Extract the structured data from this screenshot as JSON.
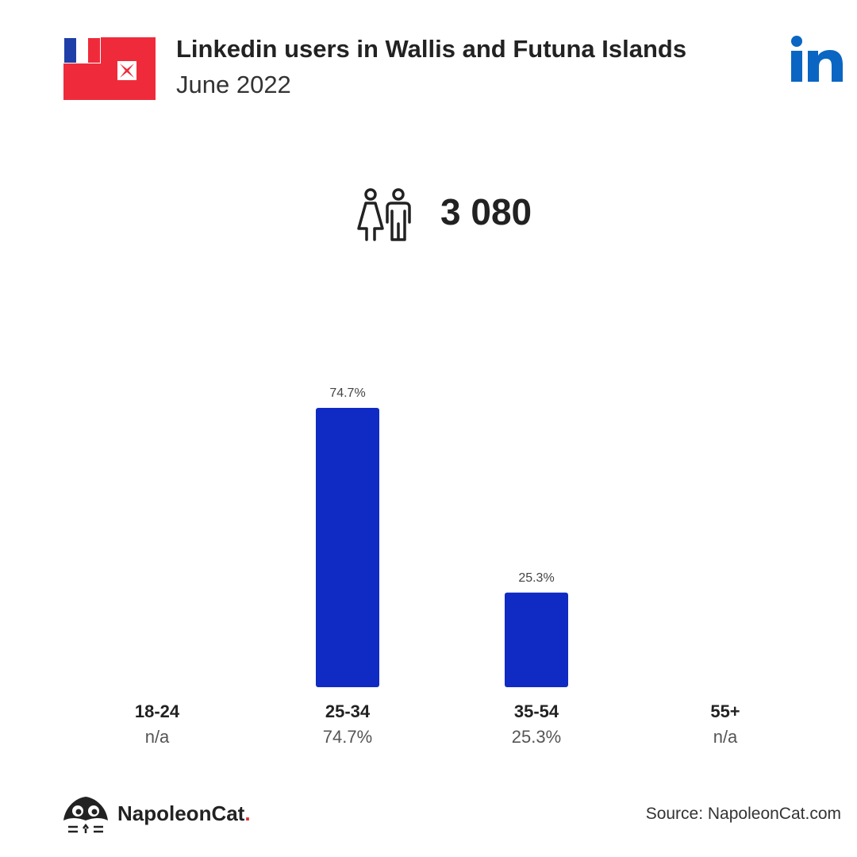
{
  "header": {
    "title": "Linkedin users in Wallis and Futuna Islands",
    "subtitle": "June 2022",
    "flag_icon": "wallis-futuna-flag-icon",
    "platform_icon": "linkedin-logo-icon"
  },
  "summary": {
    "icon": "people-icon",
    "total_users": "3 080"
  },
  "colors": {
    "bar": "#0f2bc4",
    "flag_red": "#ef2b3b",
    "flag_blue": "#1e3ea8",
    "linkedin": "#0a66c2",
    "brand_dot": "#e02b2b"
  },
  "chart_data": {
    "type": "bar",
    "title": "",
    "xlabel": "",
    "ylabel": "",
    "categories": [
      "18-24",
      "25-34",
      "35-54",
      "55+"
    ],
    "values": [
      null,
      74.7,
      25.3,
      null
    ],
    "bar_labels": [
      "",
      "74.7%",
      "25.3%",
      ""
    ],
    "value_labels": [
      "n/a",
      "74.7%",
      "25.3%",
      "n/a"
    ],
    "ylim": [
      0,
      74.7
    ],
    "grid": false,
    "legend": "none"
  },
  "footer": {
    "brand_name": "NapoleonCat",
    "brand_dot": ".",
    "source": "Source: NapoleonCat.com"
  }
}
